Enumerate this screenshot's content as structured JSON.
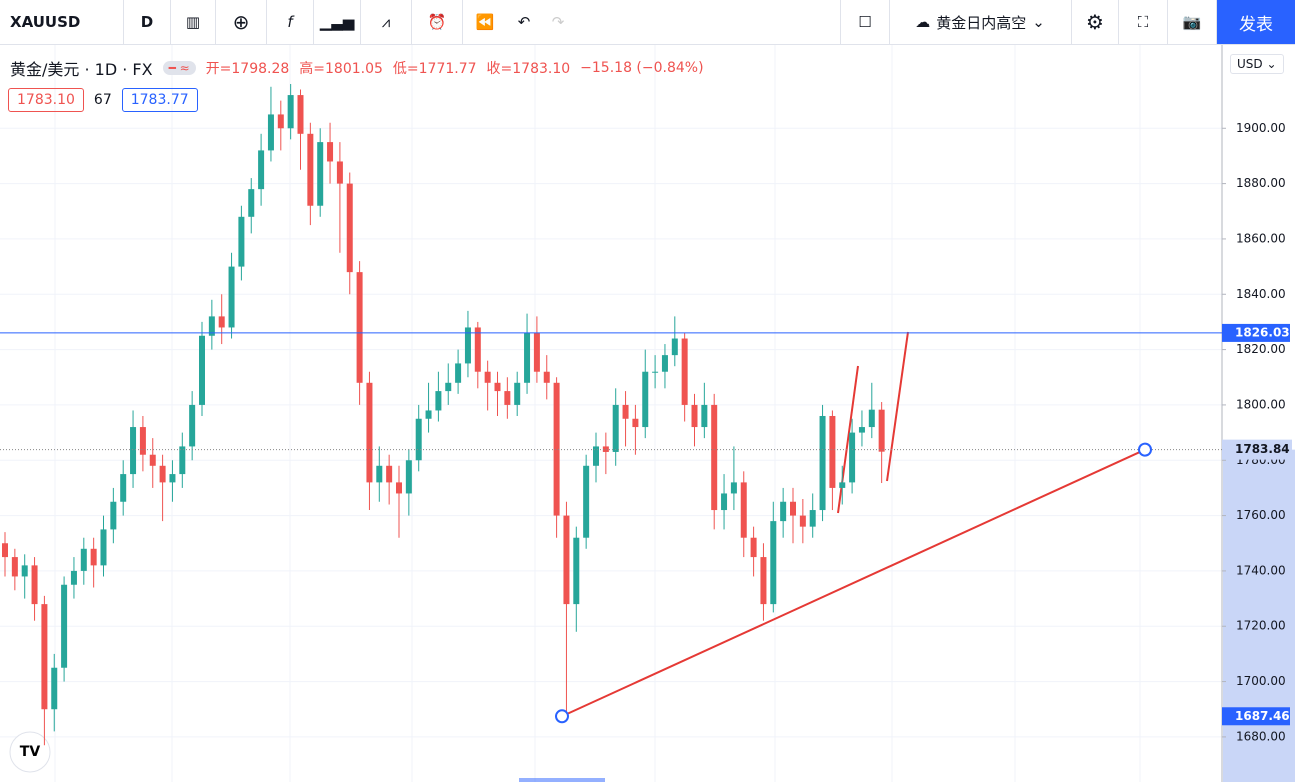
{
  "toolbar": {
    "symbol": "XAUUSD",
    "interval": "D",
    "idea": "黄金日内高空",
    "publish": "发表"
  },
  "legend": {
    "name": "黄金/美元 · 1D · FX",
    "ohlc": [
      "开=1798.28",
      "高=1801.05",
      "低=1771.77",
      "收=1783.10"
    ],
    "change": "−15.18 (−0.84%)",
    "bid": "1783.10",
    "spread": "67",
    "ask": "1783.77"
  },
  "currency": "USD",
  "chart_data": {
    "type": "candlestick",
    "up_color": "#26a69a",
    "down_color": "#ef5350",
    "open": [
      1750,
      1745,
      1738,
      1742,
      1728,
      1690,
      1705,
      1735,
      1740,
      1748,
      1742,
      1755,
      1765,
      1775,
      1792,
      1782,
      1778,
      1772,
      1775,
      1785,
      1800,
      1825,
      1832,
      1828,
      1850,
      1868,
      1878,
      1892,
      1905,
      1900,
      1912,
      1898,
      1872,
      1895,
      1888,
      1880,
      1848,
      1808,
      1772,
      1778,
      1772,
      1768,
      1780,
      1795,
      1798,
      1805,
      1808,
      1815,
      1828,
      1812,
      1808,
      1805,
      1800,
      1808,
      1826,
      1812,
      1808,
      1760,
      1728,
      1752,
      1778,
      1785,
      1783,
      1800,
      1795,
      1792,
      1812,
      1812,
      1818,
      1824,
      1800,
      1792,
      1800,
      1762,
      1768,
      1772,
      1752,
      1745,
      1728,
      1758,
      1765,
      1760,
      1756,
      1762,
      1796,
      1770,
      1772,
      1790,
      1792,
      1798.28
    ],
    "high": [
      1754,
      1748,
      1746,
      1745,
      1731,
      1710,
      1738,
      1745,
      1752,
      1752,
      1760,
      1770,
      1780,
      1798,
      1796,
      1788,
      1782,
      1780,
      1790,
      1805,
      1830,
      1838,
      1840,
      1855,
      1872,
      1882,
      1898,
      1915,
      1910,
      1916,
      1914,
      1902,
      1900,
      1902,
      1895,
      1884,
      1852,
      1812,
      1785,
      1782,
      1778,
      1784,
      1800,
      1808,
      1812,
      1815,
      1820,
      1834,
      1830,
      1816,
      1812,
      1810,
      1812,
      1833,
      1832,
      1818,
      1810,
      1765,
      1756,
      1782,
      1790,
      1790,
      1806,
      1805,
      1800,
      1820,
      1818,
      1822,
      1832,
      1826,
      1804,
      1808,
      1804,
      1775,
      1785,
      1776,
      1756,
      1750,
      1765,
      1770,
      1770,
      1766,
      1768,
      1800,
      1798,
      1778,
      1795,
      1798,
      1808,
      1801.05
    ],
    "low": [
      1738,
      1733,
      1730,
      1722,
      1677,
      1682,
      1700,
      1730,
      1735,
      1734,
      1738,
      1750,
      1760,
      1770,
      1776,
      1770,
      1758,
      1765,
      1770,
      1780,
      1796,
      1820,
      1822,
      1824,
      1845,
      1862,
      1872,
      1888,
      1892,
      1896,
      1885,
      1865,
      1868,
      1880,
      1855,
      1840,
      1800,
      1762,
      1765,
      1764,
      1752,
      1760,
      1776,
      1790,
      1794,
      1800,
      1804,
      1810,
      1806,
      1798,
      1796,
      1795,
      1796,
      1804,
      1808,
      1802,
      1752,
      1688,
      1718,
      1748,
      1772,
      1775,
      1778,
      1785,
      1782,
      1788,
      1806,
      1806,
      1814,
      1794,
      1785,
      1788,
      1755,
      1755,
      1762,
      1745,
      1738,
      1722,
      1725,
      1752,
      1750,
      1750,
      1752,
      1758,
      1762,
      1764,
      1768,
      1785,
      1788,
      1771.77
    ],
    "close": [
      1745,
      1738,
      1742,
      1728,
      1690,
      1705,
      1735,
      1740,
      1748,
      1742,
      1755,
      1765,
      1775,
      1792,
      1782,
      1778,
      1772,
      1775,
      1785,
      1800,
      1825,
      1832,
      1828,
      1850,
      1868,
      1878,
      1892,
      1905,
      1900,
      1912,
      1898,
      1872,
      1895,
      1888,
      1880,
      1848,
      1808,
      1772,
      1778,
      1772,
      1768,
      1780,
      1795,
      1798,
      1805,
      1808,
      1815,
      1828,
      1812,
      1808,
      1805,
      1800,
      1808,
      1826,
      1812,
      1808,
      1760,
      1728,
      1752,
      1778,
      1785,
      1783,
      1800,
      1795,
      1792,
      1812,
      1812,
      1818,
      1824,
      1800,
      1792,
      1800,
      1762,
      1768,
      1772,
      1752,
      1745,
      1728,
      1758,
      1765,
      1760,
      1756,
      1762,
      1796,
      1770,
      1772,
      1790,
      1792,
      1798.28,
      1783.1
    ],
    "ylim": [
      1663.7,
      1930.1
    ],
    "yticks": [
      {
        "value": 1680,
        "label": "1680.00"
      },
      {
        "value": 1700,
        "label": "1700.00"
      },
      {
        "value": 1720,
        "label": "1720.00"
      },
      {
        "value": 1740,
        "label": "1740.00"
      },
      {
        "value": 1760,
        "label": "1760.00"
      },
      {
        "value": 1780,
        "label": "1780.00"
      },
      {
        "value": 1800,
        "label": "1800.00"
      },
      {
        "value": 1820,
        "label": "1820.00"
      },
      {
        "value": 1840,
        "label": "1840.00"
      },
      {
        "value": 1860,
        "label": "1860.00"
      },
      {
        "value": 1880,
        "label": "1880.00"
      },
      {
        "value": 1900,
        "label": "1900.00"
      }
    ],
    "grid": true,
    "hline": 1826.03,
    "hline_color": "#2962ff",
    "trendline": {
      "start": 1687.46,
      "end": 1783.84,
      "color": "#e53935"
    }
  }
}
